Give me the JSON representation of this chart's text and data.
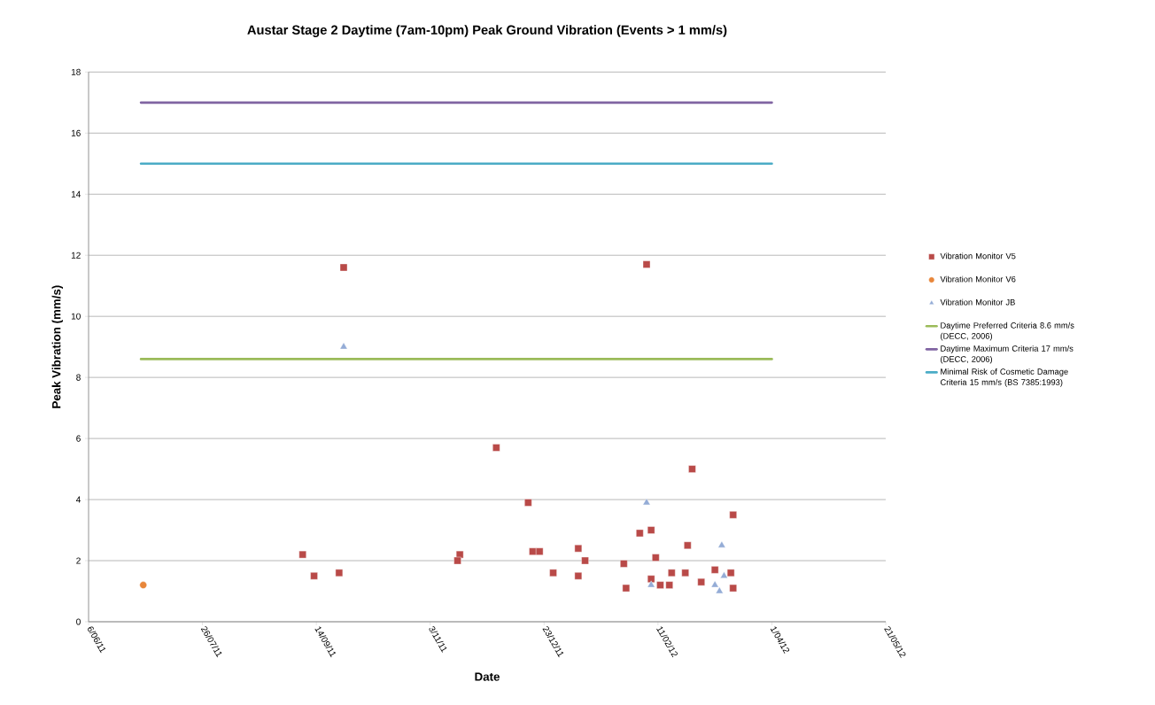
{
  "chart_data": {
    "type": "scatter",
    "title": "Austar Stage 2 Daytime (7am-10pm) Peak Ground Vibration (Events > 1 mm/s)",
    "xlabel": "Date",
    "ylabel": "Peak Vibration (mm/s)",
    "xlim": [
      "2011-06-06",
      "2012-05-21"
    ],
    "xticks": [
      {
        "value": "2011-06-06",
        "label": "6/06/11"
      },
      {
        "value": "2011-07-26",
        "label": "26/07/11"
      },
      {
        "value": "2011-09-14",
        "label": "14/09/11"
      },
      {
        "value": "2011-11-03",
        "label": "3/11/11"
      },
      {
        "value": "2011-12-23",
        "label": "23/12/11"
      },
      {
        "value": "2012-02-11",
        "label": "11/02/12"
      },
      {
        "value": "2012-04-01",
        "label": "1/04/12"
      },
      {
        "value": "2012-05-21",
        "label": "21/05/12"
      }
    ],
    "ylim": [
      0,
      18
    ],
    "yticks": [
      0,
      2,
      4,
      6,
      8,
      10,
      12,
      14,
      16,
      18
    ],
    "grid": "y",
    "legend": "right",
    "series": [
      {
        "name": "Vibration Monitor V5",
        "marker": "square",
        "color": "#b94a48",
        "x": [
          "2011-09-08",
          "2011-09-13",
          "2011-09-24",
          "2011-09-26",
          "2011-11-16",
          "2011-11-15",
          "2011-12-02",
          "2011-12-16",
          "2011-12-18",
          "2011-12-21",
          "2011-12-27",
          "2012-01-07",
          "2012-01-07",
          "2012-01-10",
          "2012-01-27",
          "2012-01-28",
          "2012-02-03",
          "2012-02-06",
          "2012-02-08",
          "2012-02-08",
          "2012-02-10",
          "2012-02-12",
          "2012-02-16",
          "2012-02-17",
          "2012-02-23",
          "2012-02-24",
          "2012-02-26",
          "2012-03-01",
          "2012-03-07",
          "2012-03-14",
          "2012-03-15",
          "2012-03-15"
        ],
        "values": [
          2.2,
          1.5,
          1.6,
          11.6,
          2.2,
          2.0,
          5.7,
          3.9,
          2.3,
          2.3,
          1.6,
          2.4,
          1.5,
          2.0,
          1.9,
          1.1,
          2.9,
          11.7,
          3.0,
          1.4,
          2.1,
          1.2,
          1.2,
          1.6,
          1.6,
          2.5,
          5.0,
          1.3,
          1.7,
          1.6,
          3.5,
          1.1
        ]
      },
      {
        "name": "Vibration Monitor V6",
        "marker": "circle",
        "color": "#e8863a",
        "x": [
          "2011-06-30"
        ],
        "values": [
          1.2
        ]
      },
      {
        "name": "Vibration Monitor JB",
        "marker": "triangle",
        "color": "#94acd6",
        "x": [
          "2011-09-26",
          "2012-02-06",
          "2012-02-08",
          "2012-03-07",
          "2012-03-09",
          "2012-03-10",
          "2012-03-11"
        ],
        "values": [
          9.0,
          3.9,
          1.2,
          1.2,
          1.0,
          2.5,
          1.5
        ]
      },
      {
        "name": "Daytime Preferred Criteria 8.6 mm/s (DECC, 2006)",
        "type": "line",
        "marker": "none",
        "color": "#9bbb59",
        "x": [
          "2011-06-29",
          "2012-04-01"
        ],
        "values": [
          8.6,
          8.6
        ]
      },
      {
        "name": "Daytime Maximum Criteria 17 mm/s (DECC, 2006)",
        "type": "line",
        "marker": "none",
        "color": "#8064a2",
        "x": [
          "2011-06-29",
          "2012-04-01"
        ],
        "values": [
          17,
          17
        ]
      },
      {
        "name": "Minimal Risk of Cosmetic Damage Criteria 15 mm/s (BS 7385:1993)",
        "type": "line",
        "marker": "none",
        "color": "#4bacc6",
        "x": [
          "2011-06-29",
          "2012-04-01"
        ],
        "values": [
          15,
          15
        ]
      }
    ]
  }
}
